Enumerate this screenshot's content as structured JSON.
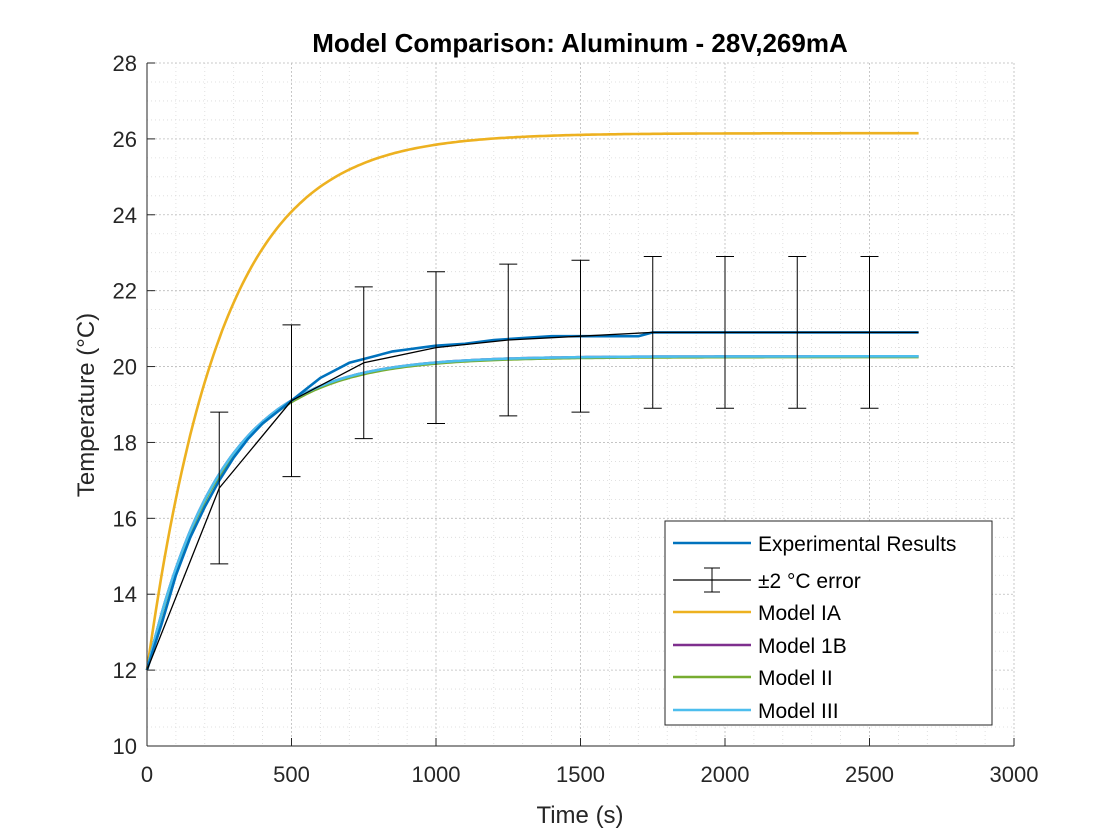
{
  "chart_data": {
    "type": "line",
    "title": "Model Comparison: Aluminum - 28V,269mA",
    "xlabel": "Time (s)",
    "ylabel": "Temperature (°C)",
    "xlim": [
      0,
      3000
    ],
    "ylim": [
      10,
      28
    ],
    "xticks": [
      0,
      500,
      1000,
      1500,
      2000,
      2500,
      3000
    ],
    "yticks": [
      10,
      12,
      14,
      16,
      18,
      20,
      22,
      24,
      26,
      28
    ],
    "grid": true,
    "minor_grid": true,
    "legend_position": "bottom-right",
    "series": [
      {
        "name": "Experimental Results",
        "color": "#0072BD",
        "x": [
          0,
          20,
          50,
          100,
          150,
          200,
          250,
          300,
          350,
          400,
          450,
          500,
          550,
          600,
          650,
          700,
          750,
          800,
          850,
          900,
          950,
          1000,
          1100,
          1200,
          1300,
          1400,
          1500,
          1600,
          1700,
          1750,
          1800,
          2000,
          2200,
          2400,
          2670
        ],
        "y": [
          12.0,
          12.5,
          13.2,
          14.5,
          15.5,
          16.3,
          17.0,
          17.6,
          18.1,
          18.5,
          18.8,
          19.1,
          19.4,
          19.7,
          19.9,
          20.1,
          20.2,
          20.3,
          20.4,
          20.45,
          20.5,
          20.55,
          20.6,
          20.7,
          20.75,
          20.8,
          20.8,
          20.8,
          20.8,
          20.9,
          20.9,
          20.9,
          20.9,
          20.9,
          20.9
        ]
      },
      {
        "name": "±2 °C error",
        "color": "#000000",
        "x": [
          0,
          250,
          500,
          750,
          1000,
          1250,
          1500,
          1750,
          2000,
          2250,
          2500,
          2670
        ],
        "y": [
          12.0,
          16.8,
          19.1,
          20.1,
          20.5,
          20.7,
          20.8,
          20.9,
          20.9,
          20.9,
          20.9,
          20.9
        ],
        "error": 2,
        "error_x": [
          250,
          500,
          750,
          1000,
          1250,
          1500,
          1750,
          2000,
          2250,
          2500
        ]
      },
      {
        "name": "Model IA",
        "color": "#EDB120",
        "model": {
          "T0": 12.0,
          "Tinf": 26.15,
          "tau": 260
        }
      },
      {
        "name": "Model 1B",
        "color": "#7E2F8E",
        "model": {
          "T0": 12.0,
          "Tinf": 20.27,
          "tau": 255
        }
      },
      {
        "name": "Model II",
        "color": "#77AC30",
        "model": {
          "T0": 12.0,
          "Tinf": 20.25,
          "tau": 258
        }
      },
      {
        "name": "Model III",
        "color": "#4DBEEE",
        "model": {
          "T0": 12.0,
          "Tinf": 20.27,
          "tau": 255
        }
      }
    ],
    "x_end": 2670
  }
}
